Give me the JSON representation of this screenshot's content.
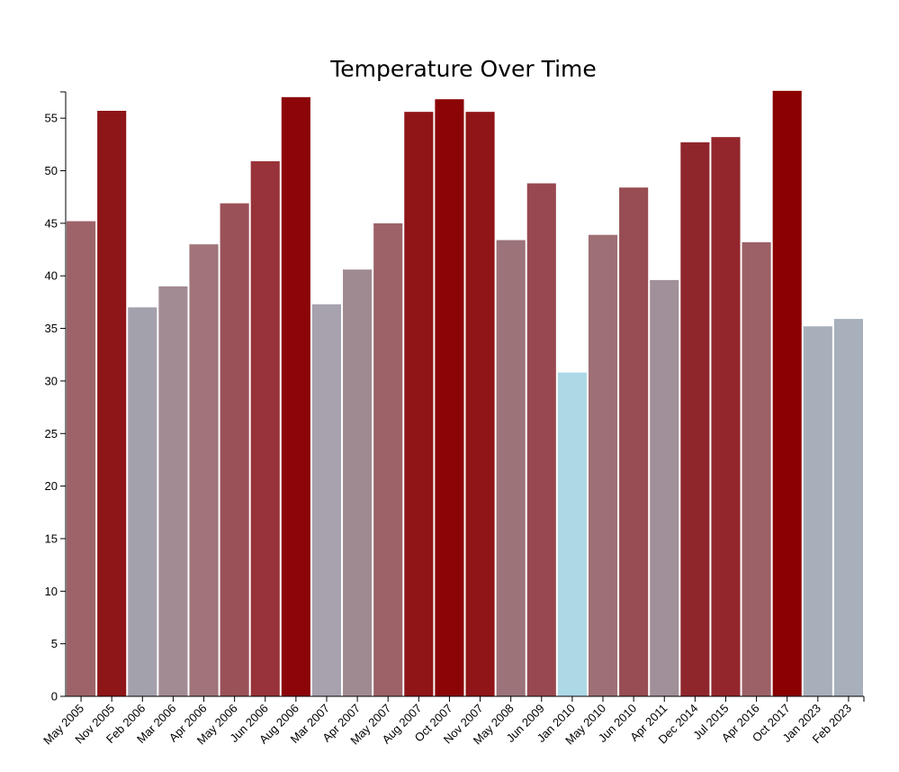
{
  "chart_data": {
    "type": "bar",
    "title": "Temperature Over Time",
    "xlabel": "",
    "ylabel": "",
    "ylim": [
      0,
      57.5
    ],
    "yticks": [
      0,
      5,
      10,
      15,
      20,
      25,
      30,
      35,
      40,
      45,
      50,
      55
    ],
    "categories": [
      "May 2005",
      "Nov 2005",
      "Feb 2006",
      "Mar 2006",
      "Apr 2006",
      "May 2006",
      "Jun 2006",
      "Aug 2006",
      "Mar 2007",
      "Apr 2007",
      "May 2007",
      "Aug 2007",
      "Oct 2007",
      "Nov 2007",
      "May 2008",
      "Jun 2009",
      "Jan 2010",
      "May 2010",
      "Jun 2010",
      "Apr 2011",
      "Dec 2014",
      "Jul 2015",
      "Apr 2016",
      "Oct 2017",
      "Jan 2023",
      "Feb 2023"
    ],
    "values": [
      45.2,
      55.7,
      37.0,
      39.0,
      43.0,
      46.9,
      50.9,
      57.0,
      37.3,
      40.6,
      45.0,
      55.6,
      56.8,
      55.6,
      43.4,
      48.8,
      30.8,
      43.9,
      48.4,
      39.6,
      52.7,
      53.2,
      43.2,
      57.6,
      35.2,
      35.9
    ],
    "colors": [
      "#9e6369",
      "#8e1518",
      "#a3a1ac",
      "#a38b94",
      "#a07479",
      "#9b5158",
      "#983339",
      "#8b0509",
      "#a7a2ae",
      "#a08a91",
      "#9c6267",
      "#8f1517",
      "#8b0507",
      "#8f1518",
      "#9b7379",
      "#984850",
      "#add8e6",
      "#9f6f76",
      "#984c53",
      "#a18f99",
      "#8f262c",
      "#93262c",
      "#9b6166",
      "#8b0001",
      "#a7b0ba",
      "#a7b0bb"
    ],
    "grid": false,
    "legend": "none"
  }
}
